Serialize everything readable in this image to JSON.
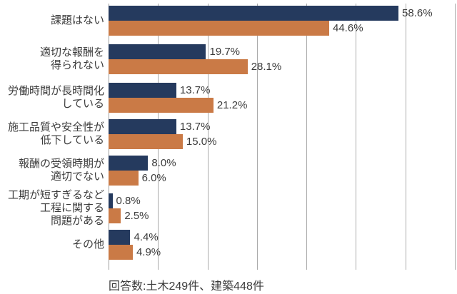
{
  "chart_data": {
    "type": "bar",
    "orientation": "horizontal",
    "title": "",
    "xlabel": "",
    "ylabel": "",
    "xlim": [
      0,
      70
    ],
    "gridline_interval": 10,
    "grid": true,
    "legend_position": "none",
    "value_suffix": "%",
    "categories": [
      "課題はない",
      "適切な報酬を\n得られない",
      "労働時間が長時間化\nしている",
      "施工品質や安全性が\n低下している",
      "報酬の受領時期が\n適切でない",
      "工期が短すぎるなど\n工程に関する\n問題がある",
      "その他"
    ],
    "series": [
      {
        "name": "土木",
        "color": "#253a5e",
        "values": [
          58.6,
          19.7,
          13.7,
          13.7,
          8.0,
          0.8,
          4.4
        ]
      },
      {
        "name": "建築",
        "color": "#ca7a46",
        "values": [
          44.6,
          28.1,
          21.2,
          15.0,
          6.0,
          2.5,
          4.9
        ]
      }
    ],
    "footnote": "回答数:土木249件、建築448件"
  },
  "colors": {
    "series_civil": "#253a5e",
    "series_architecture": "#ca7a46",
    "gridline": "#ababab",
    "text": "#3b3b3b",
    "background": "#ffffff"
  }
}
